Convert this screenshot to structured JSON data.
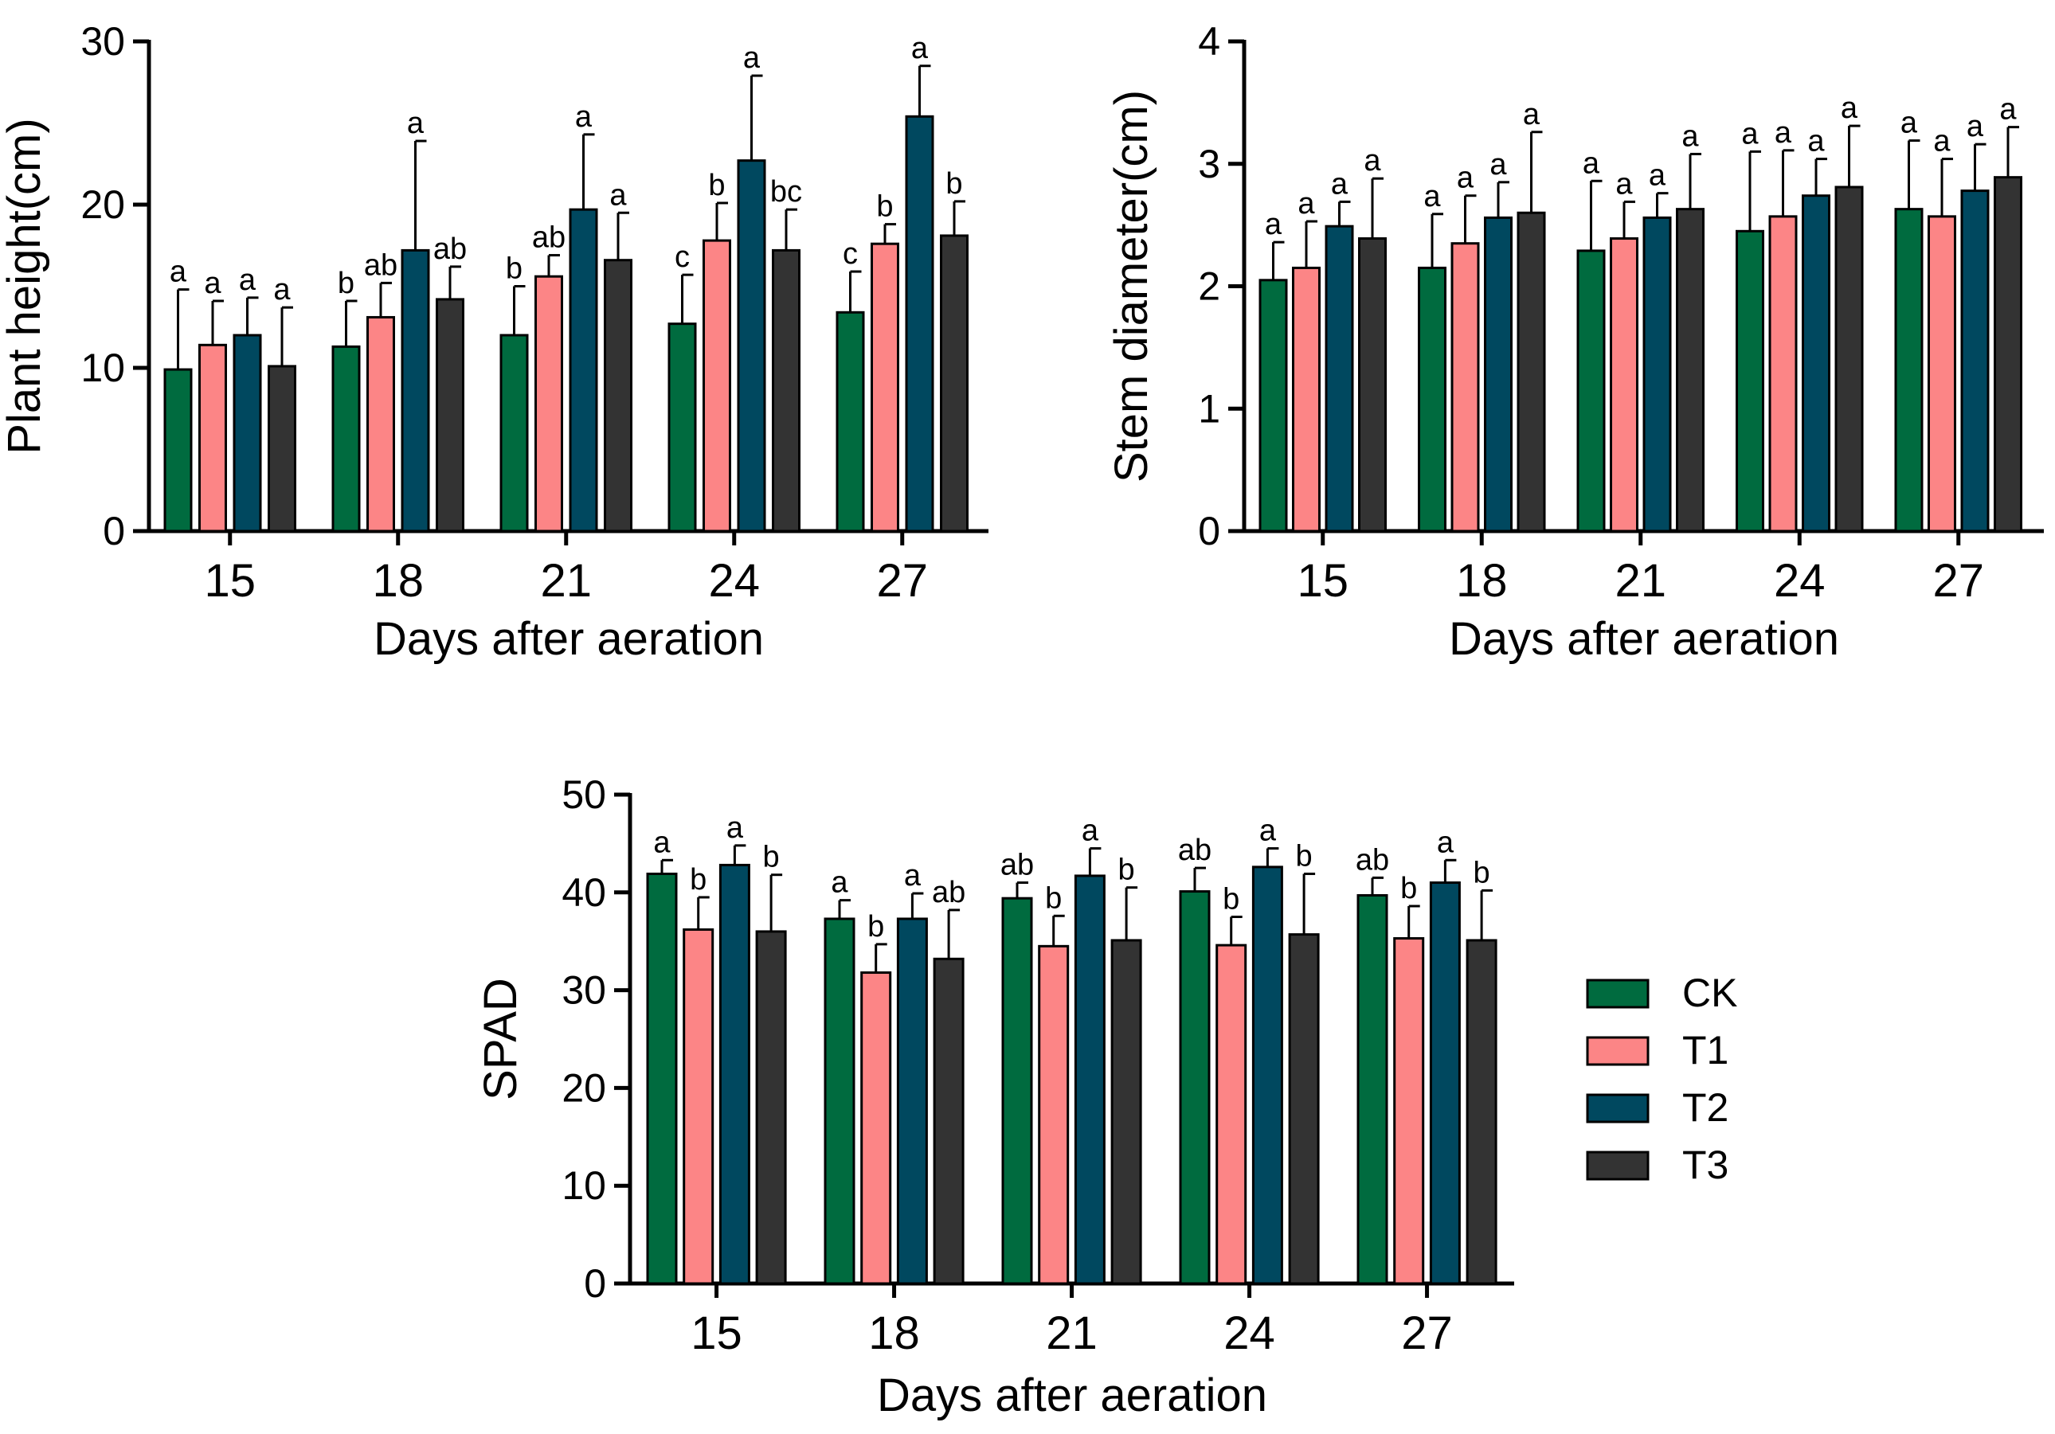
{
  "chart_data": [
    {
      "type": "bar",
      "id": "plant-height",
      "title": "",
      "xlabel": "Days after aeration",
      "ylabel": "Plant height(cm)",
      "ylim": [
        0,
        30
      ],
      "yticks": [
        0,
        10,
        20,
        30
      ],
      "categories": [
        "15",
        "18",
        "21",
        "24",
        "27"
      ],
      "series": [
        {
          "name": "CK",
          "values": [
            9.9,
            11.3,
            12.0,
            12.7,
            13.4
          ],
          "errors": [
            4.9,
            2.8,
            3.0,
            3.0,
            2.5
          ],
          "labels": [
            "a",
            "b",
            "b",
            "c",
            "c"
          ]
        },
        {
          "name": "T1",
          "values": [
            11.4,
            13.1,
            15.6,
            17.8,
            17.6
          ],
          "errors": [
            2.7,
            2.1,
            1.3,
            2.3,
            1.2
          ],
          "labels": [
            "a",
            "ab",
            "ab",
            "b",
            "b"
          ]
        },
        {
          "name": "T2",
          "values": [
            12.0,
            17.2,
            19.7,
            22.7,
            25.4
          ],
          "errors": [
            2.3,
            6.7,
            4.6,
            5.2,
            3.1
          ],
          "labels": [
            "a",
            "a",
            "a",
            "a",
            "a"
          ]
        },
        {
          "name": "T3",
          "values": [
            10.1,
            14.2,
            16.6,
            17.2,
            18.1
          ],
          "errors": [
            3.6,
            2.0,
            2.9,
            2.5,
            2.1
          ],
          "labels": [
            "a",
            "ab",
            "a",
            "bc",
            "b"
          ]
        }
      ]
    },
    {
      "type": "bar",
      "id": "stem-diameter",
      "title": "",
      "xlabel": "Days after aeration",
      "ylabel": "Stem diameter(cm)",
      "ylim": [
        0,
        4
      ],
      "yticks": [
        0,
        1,
        2,
        3,
        4
      ],
      "categories": [
        "15",
        "18",
        "21",
        "24",
        "27"
      ],
      "series": [
        {
          "name": "CK",
          "values": [
            2.05,
            2.15,
            2.29,
            2.45,
            2.63
          ],
          "errors": [
            0.31,
            0.44,
            0.57,
            0.65,
            0.56
          ],
          "labels": [
            "a",
            "a",
            "a",
            "a",
            "a"
          ]
        },
        {
          "name": "T1",
          "values": [
            2.15,
            2.35,
            2.39,
            2.57,
            2.57
          ],
          "errors": [
            0.38,
            0.39,
            0.3,
            0.54,
            0.47
          ],
          "labels": [
            "a",
            "a",
            "a",
            "a",
            "a"
          ]
        },
        {
          "name": "T2",
          "values": [
            2.49,
            2.56,
            2.56,
            2.74,
            2.78
          ],
          "errors": [
            0.2,
            0.29,
            0.2,
            0.3,
            0.38
          ],
          "labels": [
            "a",
            "a",
            "a",
            "a",
            "a"
          ]
        },
        {
          "name": "T3",
          "values": [
            2.39,
            2.6,
            2.63,
            2.81,
            2.89
          ],
          "errors": [
            0.49,
            0.66,
            0.45,
            0.5,
            0.41
          ],
          "labels": [
            "a",
            "a",
            "a",
            "a",
            "a"
          ]
        }
      ]
    },
    {
      "type": "bar",
      "id": "spad",
      "title": "",
      "xlabel": "Days after aeration",
      "ylabel": "SPAD",
      "ylim": [
        0,
        50
      ],
      "yticks": [
        0,
        10,
        20,
        30,
        40,
        50
      ],
      "categories": [
        "15",
        "18",
        "21",
        "24",
        "27"
      ],
      "series": [
        {
          "name": "CK",
          "values": [
            41.9,
            37.3,
            39.4,
            40.1,
            39.7
          ],
          "errors": [
            1.4,
            1.9,
            1.6,
            2.4,
            1.8
          ],
          "labels": [
            "a",
            "a",
            "ab",
            "ab",
            "ab"
          ]
        },
        {
          "name": "T1",
          "values": [
            36.2,
            31.8,
            34.5,
            34.6,
            35.3
          ],
          "errors": [
            3.3,
            2.9,
            3.1,
            2.9,
            3.3
          ],
          "labels": [
            "b",
            "b",
            "b",
            "b",
            "b"
          ]
        },
        {
          "name": "T2",
          "values": [
            42.8,
            37.3,
            41.7,
            42.6,
            41.0
          ],
          "errors": [
            2.0,
            2.6,
            2.8,
            1.9,
            2.3
          ],
          "labels": [
            "a",
            "a",
            "a",
            "a",
            "a"
          ]
        },
        {
          "name": "T3",
          "values": [
            36.0,
            33.2,
            35.1,
            35.7,
            35.1
          ],
          "errors": [
            5.8,
            5.0,
            5.4,
            6.2,
            5.1
          ],
          "labels": [
            "b",
            "ab",
            "b",
            "b",
            "b"
          ]
        }
      ]
    }
  ],
  "legend": {
    "placement": "right of SPAD chart",
    "items": [
      {
        "name": "CK",
        "color": "#006b3f"
      },
      {
        "name": "T1",
        "color": "#fc8586"
      },
      {
        "name": "T2",
        "color": "#00485f"
      },
      {
        "name": "T3",
        "color": "#333333"
      }
    ]
  }
}
